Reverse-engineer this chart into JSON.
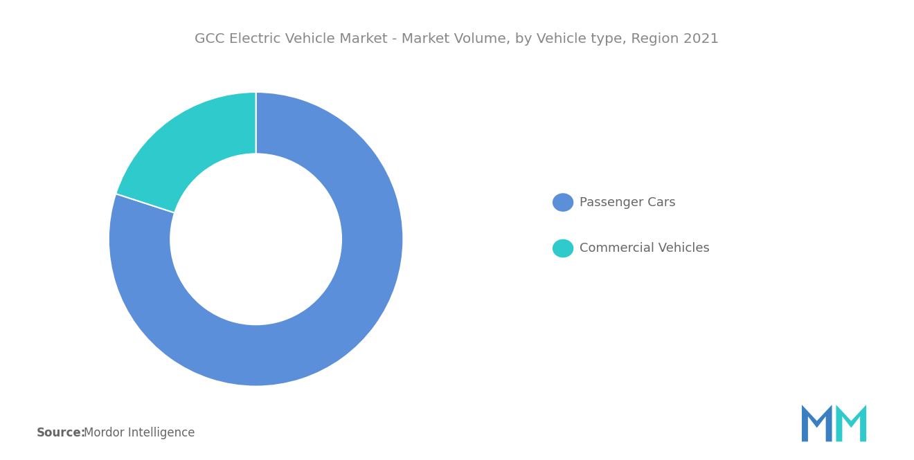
{
  "title": "GCC Electric Vehicle Market - Market Volume, by Vehicle type, Region 2021",
  "segments": [
    "Passenger Cars",
    "Commercial Vehicles"
  ],
  "values": [
    80,
    20
  ],
  "colors": [
    "#5b8fd9",
    "#2ecacc"
  ],
  "background_color": "#ffffff",
  "title_color": "#888888",
  "legend_text_color": "#666666",
  "source_bold": "Source:",
  "source_text": "Mordor Intelligence",
  "title_fontsize": 14.5,
  "legend_fontsize": 13,
  "source_fontsize": 12,
  "donut_width": 0.42,
  "startangle": 90
}
